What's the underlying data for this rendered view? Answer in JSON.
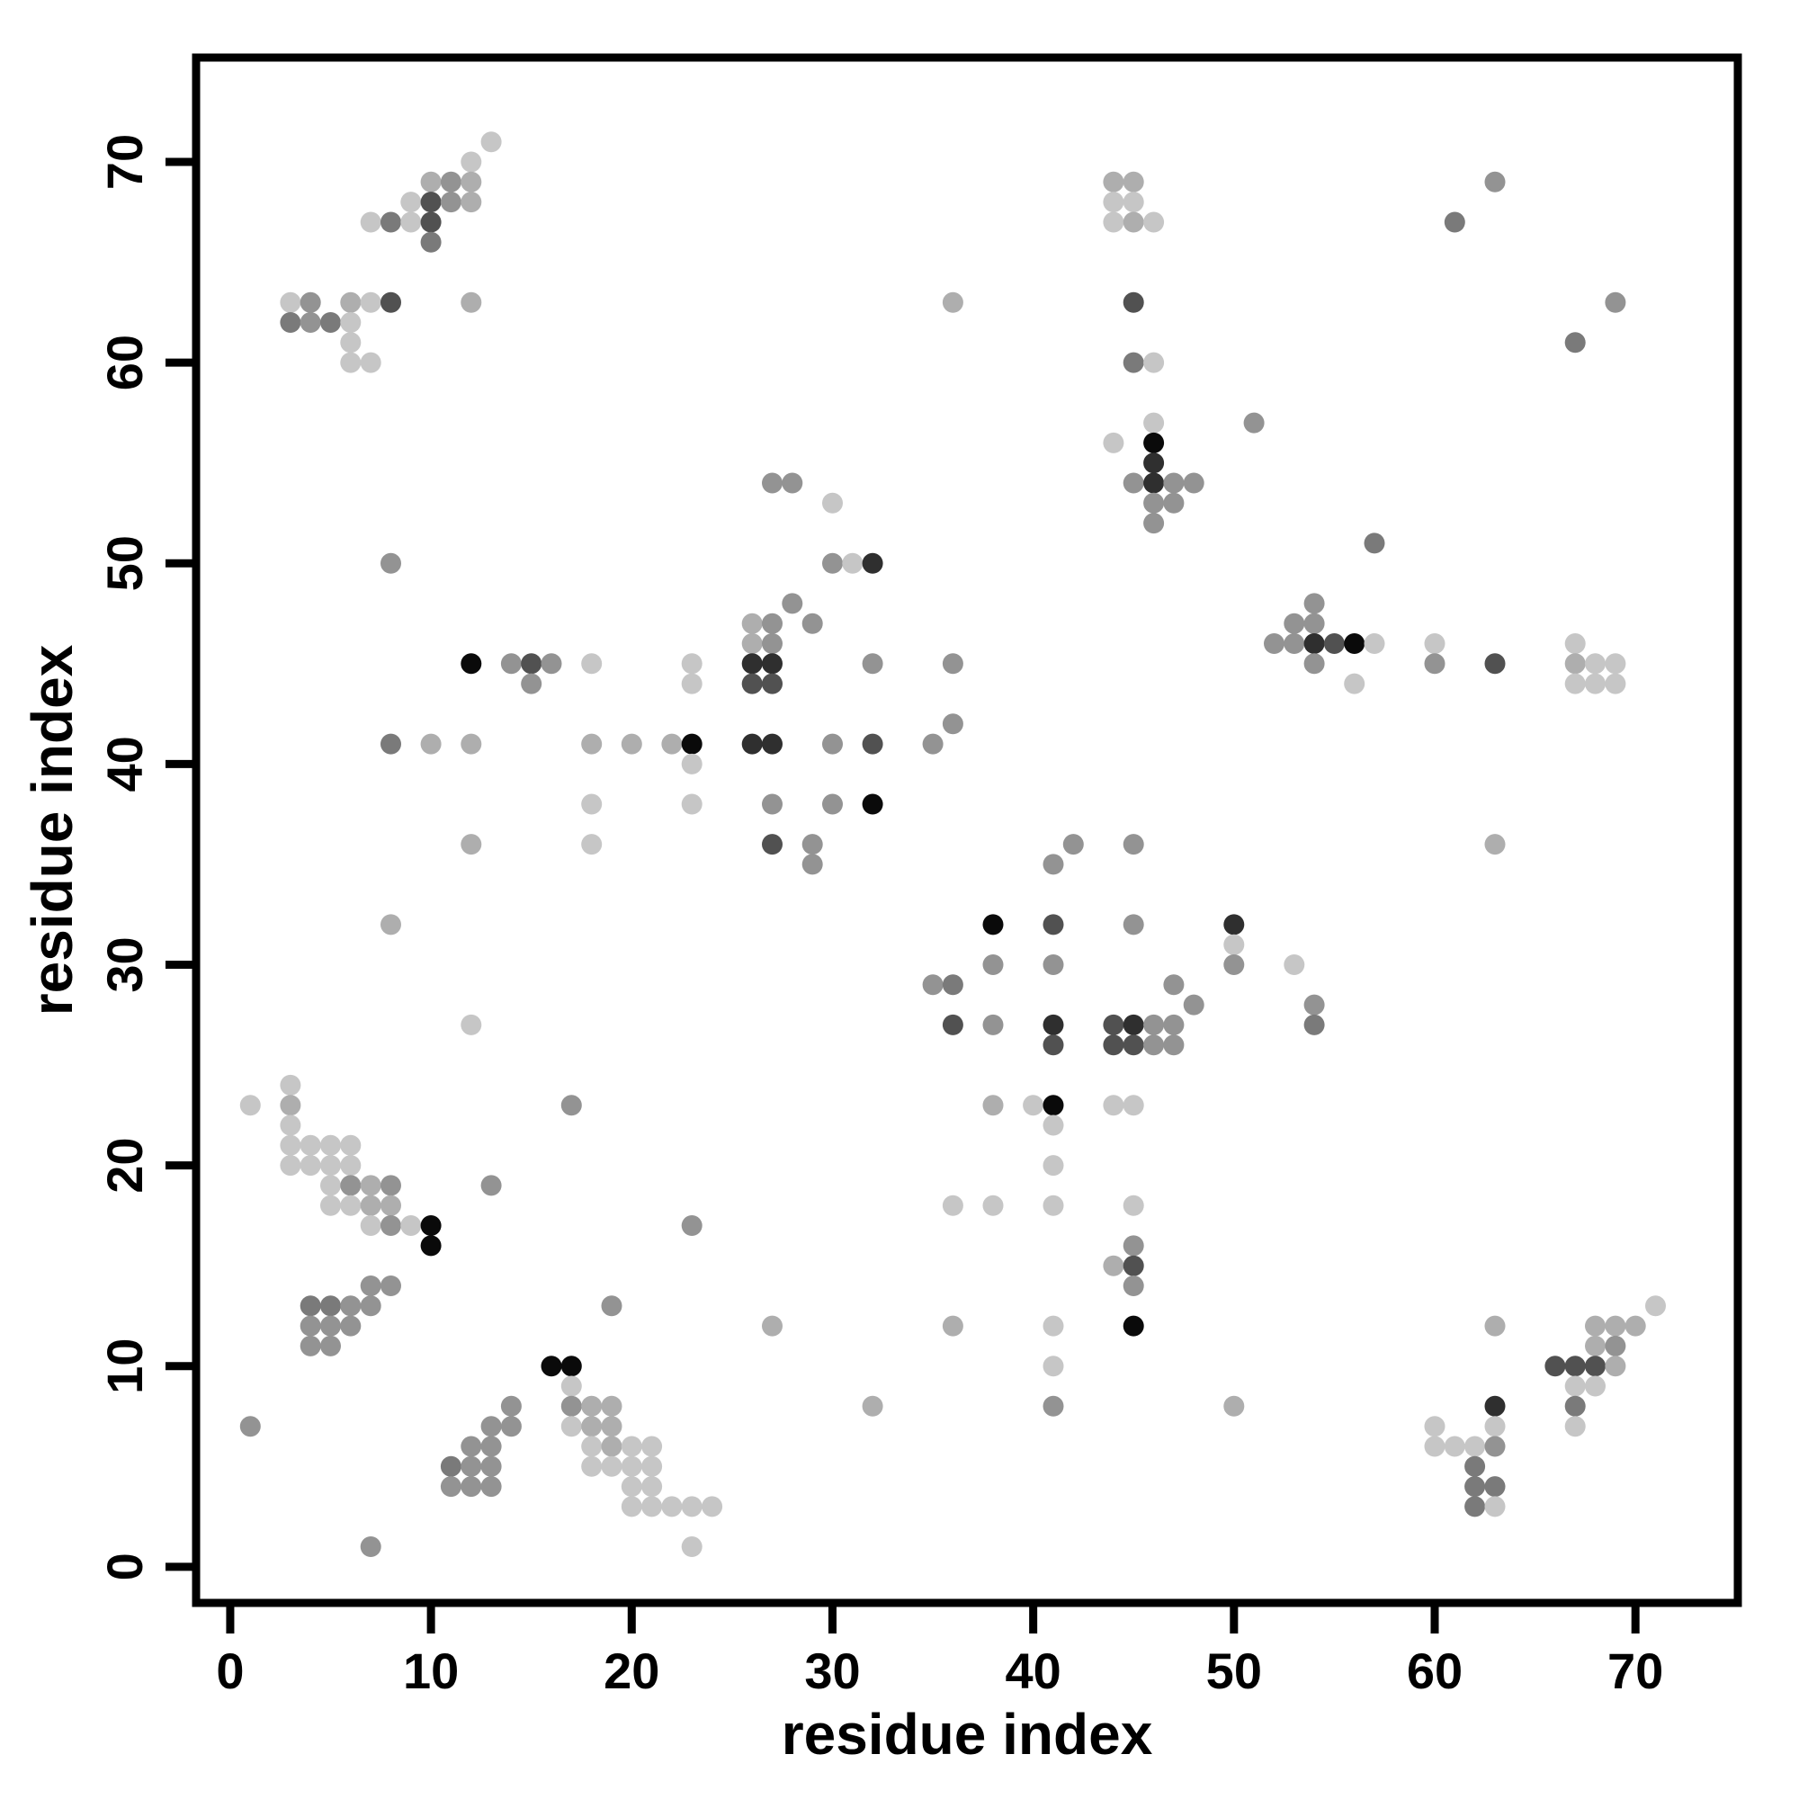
{
  "figure": {
    "background_color": "#ffffff",
    "frame_color": "#000000"
  },
  "chart_data": {
    "type": "scatter",
    "title": "",
    "xlabel": "residue index",
    "ylabel": "residue index",
    "xlim": [
      -1.7,
      75.1
    ],
    "ylim": [
      -1.8,
      75.2
    ],
    "xticks": [
      0,
      10,
      20,
      30,
      40,
      50,
      60,
      70
    ],
    "yticks": [
      0,
      10,
      20,
      30,
      40,
      50,
      60,
      70
    ],
    "grid": false,
    "legend": "none",
    "marker": "circle",
    "marker_radius_px": 11.5,
    "shade_palette": {
      "L": "#c6c6c6",
      "LM": "#aeaeae",
      "M": "#939393",
      "MD": "#7a7a7a",
      "D": "#515151",
      "VD": "#2f2f2f",
      "B": "#0a0a0a"
    },
    "points": [
      [
        13,
        71,
        "L"
      ],
      [
        12,
        70,
        "L"
      ],
      [
        10,
        69,
        "LM"
      ],
      [
        11,
        69,
        "M"
      ],
      [
        12,
        69,
        "LM"
      ],
      [
        9,
        68,
        "L"
      ],
      [
        10,
        68,
        "D"
      ],
      [
        11,
        68,
        "M"
      ],
      [
        12,
        68,
        "LM"
      ],
      [
        7,
        67,
        "L"
      ],
      [
        8,
        67,
        "MD"
      ],
      [
        9,
        67,
        "L"
      ],
      [
        10,
        67,
        "D"
      ],
      [
        10,
        66,
        "MD"
      ],
      [
        3,
        63,
        "L"
      ],
      [
        4,
        63,
        "M"
      ],
      [
        6,
        63,
        "LM"
      ],
      [
        7,
        63,
        "L"
      ],
      [
        8,
        63,
        "D"
      ],
      [
        12,
        63,
        "LM"
      ],
      [
        3,
        62,
        "MD"
      ],
      [
        4,
        62,
        "M"
      ],
      [
        5,
        62,
        "MD"
      ],
      [
        6,
        62,
        "L"
      ],
      [
        6,
        61,
        "L"
      ],
      [
        6,
        60,
        "L"
      ],
      [
        7,
        60,
        "L"
      ],
      [
        3,
        24,
        "L"
      ],
      [
        1,
        23,
        "L"
      ],
      [
        3,
        23,
        "LM"
      ],
      [
        3,
        22,
        "L"
      ],
      [
        3,
        21,
        "L"
      ],
      [
        4,
        21,
        "L"
      ],
      [
        5,
        21,
        "L"
      ],
      [
        6,
        21,
        "L"
      ],
      [
        3,
        20,
        "L"
      ],
      [
        4,
        20,
        "L"
      ],
      [
        5,
        20,
        "L"
      ],
      [
        6,
        20,
        "L"
      ],
      [
        5,
        19,
        "L"
      ],
      [
        6,
        19,
        "M"
      ],
      [
        7,
        19,
        "LM"
      ],
      [
        8,
        19,
        "M"
      ],
      [
        13,
        19,
        "M"
      ],
      [
        5,
        18,
        "L"
      ],
      [
        6,
        18,
        "L"
      ],
      [
        7,
        18,
        "LM"
      ],
      [
        8,
        18,
        "LM"
      ],
      [
        7,
        17,
        "L"
      ],
      [
        8,
        17,
        "M"
      ],
      [
        9,
        17,
        "L"
      ],
      [
        10,
        17,
        "B"
      ],
      [
        10,
        16,
        "B"
      ],
      [
        7,
        14,
        "M"
      ],
      [
        8,
        14,
        "M"
      ],
      [
        4,
        13,
        "MD"
      ],
      [
        5,
        13,
        "MD"
      ],
      [
        6,
        13,
        "M"
      ],
      [
        7,
        13,
        "M"
      ],
      [
        4,
        12,
        "M"
      ],
      [
        5,
        12,
        "M"
      ],
      [
        6,
        12,
        "M"
      ],
      [
        4,
        11,
        "M"
      ],
      [
        5,
        11,
        "M"
      ],
      [
        1,
        7,
        "M"
      ],
      [
        8,
        50,
        "M"
      ],
      [
        8,
        41,
        "MD"
      ],
      [
        8,
        32,
        "LM"
      ],
      [
        12,
        45,
        "B"
      ],
      [
        14,
        45,
        "M"
      ],
      [
        15,
        45,
        "D"
      ],
      [
        16,
        45,
        "M"
      ],
      [
        18,
        45,
        "L"
      ],
      [
        15,
        44,
        "M"
      ],
      [
        10,
        41,
        "LM"
      ],
      [
        12,
        41,
        "LM"
      ],
      [
        18,
        41,
        "LM"
      ],
      [
        20,
        41,
        "LM"
      ],
      [
        22,
        41,
        "LM"
      ],
      [
        23,
        41,
        "B"
      ],
      [
        26,
        41,
        "VD"
      ],
      [
        27,
        41,
        "VD"
      ],
      [
        30,
        41,
        "M"
      ],
      [
        32,
        41,
        "D"
      ],
      [
        12,
        36,
        "LM"
      ],
      [
        18,
        36,
        "L"
      ],
      [
        18,
        38,
        "L"
      ],
      [
        12,
        27,
        "L"
      ],
      [
        17,
        23,
        "M"
      ],
      [
        23,
        17,
        "M"
      ],
      [
        27,
        54,
        "M"
      ],
      [
        28,
        54,
        "M"
      ],
      [
        30,
        53,
        "L"
      ],
      [
        30,
        50,
        "M"
      ],
      [
        31,
        50,
        "L"
      ],
      [
        32,
        50,
        "VD"
      ],
      [
        28,
        48,
        "M"
      ],
      [
        26,
        47,
        "LM"
      ],
      [
        27,
        47,
        "M"
      ],
      [
        29,
        47,
        "M"
      ],
      [
        26,
        46,
        "LM"
      ],
      [
        27,
        46,
        "M"
      ],
      [
        23,
        45,
        "L"
      ],
      [
        26,
        45,
        "VD"
      ],
      [
        27,
        45,
        "VD"
      ],
      [
        32,
        45,
        "M"
      ],
      [
        23,
        44,
        "L"
      ],
      [
        26,
        44,
        "D"
      ],
      [
        27,
        44,
        "D"
      ],
      [
        23,
        40,
        "L"
      ],
      [
        23,
        38,
        "L"
      ],
      [
        27,
        38,
        "M"
      ],
      [
        30,
        38,
        "M"
      ],
      [
        32,
        38,
        "B"
      ],
      [
        27,
        36,
        "D"
      ],
      [
        29,
        36,
        "M"
      ],
      [
        29,
        35,
        "M"
      ],
      [
        35,
        41,
        "M"
      ],
      [
        36,
        42,
        "M"
      ],
      [
        36,
        45,
        "M"
      ],
      [
        19,
        13,
        "M"
      ],
      [
        17,
        10,
        "B"
      ],
      [
        16,
        10,
        "B"
      ],
      [
        17,
        9,
        "L"
      ],
      [
        17,
        8,
        "M"
      ],
      [
        18,
        8,
        "LM"
      ],
      [
        19,
        8,
        "LM"
      ],
      [
        17,
        7,
        "L"
      ],
      [
        18,
        7,
        "LM"
      ],
      [
        19,
        7,
        "LM"
      ],
      [
        18,
        6,
        "L"
      ],
      [
        19,
        6,
        "LM"
      ],
      [
        20,
        6,
        "L"
      ],
      [
        21,
        6,
        "L"
      ],
      [
        18,
        5,
        "L"
      ],
      [
        19,
        5,
        "L"
      ],
      [
        20,
        5,
        "L"
      ],
      [
        21,
        5,
        "L"
      ],
      [
        20,
        4,
        "L"
      ],
      [
        21,
        4,
        "L"
      ],
      [
        20,
        3,
        "L"
      ],
      [
        21,
        3,
        "L"
      ],
      [
        22,
        3,
        "L"
      ],
      [
        23,
        3,
        "L"
      ],
      [
        24,
        3,
        "L"
      ],
      [
        23,
        1,
        "L"
      ],
      [
        7,
        1,
        "M"
      ],
      [
        14,
        8,
        "M"
      ],
      [
        13,
        7,
        "M"
      ],
      [
        14,
        7,
        "M"
      ],
      [
        12,
        6,
        "M"
      ],
      [
        13,
        6,
        "M"
      ],
      [
        11,
        5,
        "MD"
      ],
      [
        12,
        5,
        "M"
      ],
      [
        13,
        5,
        "M"
      ],
      [
        11,
        4,
        "M"
      ],
      [
        12,
        4,
        "M"
      ],
      [
        13,
        4,
        "M"
      ],
      [
        27,
        12,
        "LM"
      ],
      [
        32,
        8,
        "LM"
      ],
      [
        41,
        35,
        "M"
      ],
      [
        42,
        36,
        "M"
      ],
      [
        45,
        36,
        "M"
      ],
      [
        38,
        32,
        "B"
      ],
      [
        41,
        32,
        "D"
      ],
      [
        45,
        32,
        "M"
      ],
      [
        50,
        32,
        "VD"
      ],
      [
        50,
        31,
        "L"
      ],
      [
        38,
        30,
        "M"
      ],
      [
        41,
        30,
        "M"
      ],
      [
        50,
        30,
        "M"
      ],
      [
        53,
        30,
        "L"
      ],
      [
        35,
        29,
        "M"
      ],
      [
        36,
        29,
        "MD"
      ],
      [
        47,
        29,
        "M"
      ],
      [
        48,
        28,
        "M"
      ],
      [
        54,
        28,
        "M"
      ],
      [
        36,
        27,
        "D"
      ],
      [
        38,
        27,
        "M"
      ],
      [
        41,
        27,
        "VD"
      ],
      [
        44,
        27,
        "D"
      ],
      [
        45,
        27,
        "VD"
      ],
      [
        46,
        27,
        "M"
      ],
      [
        47,
        27,
        "M"
      ],
      [
        54,
        27,
        "MD"
      ],
      [
        41,
        26,
        "D"
      ],
      [
        44,
        26,
        "D"
      ],
      [
        45,
        26,
        "D"
      ],
      [
        46,
        26,
        "M"
      ],
      [
        47,
        26,
        "M"
      ],
      [
        38,
        23,
        "LM"
      ],
      [
        40,
        23,
        "L"
      ],
      [
        41,
        23,
        "B"
      ],
      [
        44,
        23,
        "L"
      ],
      [
        45,
        23,
        "L"
      ],
      [
        41,
        22,
        "L"
      ],
      [
        41,
        20,
        "L"
      ],
      [
        36,
        18,
        "L"
      ],
      [
        38,
        18,
        "L"
      ],
      [
        41,
        18,
        "L"
      ],
      [
        45,
        18,
        "L"
      ],
      [
        45,
        16,
        "M"
      ],
      [
        44,
        15,
        "LM"
      ],
      [
        45,
        15,
        "D"
      ],
      [
        45,
        14,
        "M"
      ],
      [
        36,
        12,
        "LM"
      ],
      [
        41,
        12,
        "L"
      ],
      [
        45,
        12,
        "B"
      ],
      [
        41,
        10,
        "L"
      ],
      [
        41,
        8,
        "M"
      ],
      [
        50,
        8,
        "LM"
      ],
      [
        46,
        57,
        "L"
      ],
      [
        44,
        56,
        "L"
      ],
      [
        46,
        56,
        "B"
      ],
      [
        46,
        55,
        "VD"
      ],
      [
        45,
        54,
        "M"
      ],
      [
        46,
        54,
        "VD"
      ],
      [
        47,
        54,
        "M"
      ],
      [
        48,
        54,
        "M"
      ],
      [
        46,
        53,
        "M"
      ],
      [
        47,
        53,
        "M"
      ],
      [
        46,
        52,
        "M"
      ],
      [
        51,
        57,
        "M"
      ],
      [
        57,
        51,
        "MD"
      ],
      [
        44,
        69,
        "LM"
      ],
      [
        45,
        69,
        "LM"
      ],
      [
        44,
        68,
        "L"
      ],
      [
        45,
        68,
        "L"
      ],
      [
        44,
        67,
        "L"
      ],
      [
        45,
        67,
        "LM"
      ],
      [
        46,
        67,
        "L"
      ],
      [
        45,
        63,
        "D"
      ],
      [
        36,
        63,
        "LM"
      ],
      [
        45,
        60,
        "MD"
      ],
      [
        46,
        60,
        "L"
      ],
      [
        63,
        69,
        "M"
      ],
      [
        61,
        67,
        "MD"
      ],
      [
        69,
        63,
        "M"
      ],
      [
        67,
        61,
        "MD"
      ],
      [
        63,
        36,
        "LM"
      ],
      [
        54,
        48,
        "M"
      ],
      [
        53,
        47,
        "M"
      ],
      [
        54,
        47,
        "M"
      ],
      [
        52,
        46,
        "M"
      ],
      [
        53,
        46,
        "M"
      ],
      [
        54,
        46,
        "VD"
      ],
      [
        55,
        46,
        "D"
      ],
      [
        56,
        46,
        "B"
      ],
      [
        57,
        46,
        "L"
      ],
      [
        60,
        46,
        "L"
      ],
      [
        54,
        45,
        "M"
      ],
      [
        60,
        45,
        "M"
      ],
      [
        56,
        44,
        "L"
      ],
      [
        63,
        45,
        "D"
      ],
      [
        67,
        46,
        "L"
      ],
      [
        67,
        45,
        "LM"
      ],
      [
        68,
        45,
        "L"
      ],
      [
        69,
        45,
        "L"
      ],
      [
        67,
        44,
        "L"
      ],
      [
        68,
        44,
        "L"
      ],
      [
        69,
        44,
        "L"
      ],
      [
        71,
        13,
        "L"
      ],
      [
        63,
        12,
        "LM"
      ],
      [
        68,
        12,
        "LM"
      ],
      [
        69,
        12,
        "LM"
      ],
      [
        70,
        12,
        "LM"
      ],
      [
        68,
        11,
        "LM"
      ],
      [
        69,
        11,
        "M"
      ],
      [
        66,
        10,
        "D"
      ],
      [
        67,
        10,
        "D"
      ],
      [
        68,
        10,
        "D"
      ],
      [
        69,
        10,
        "LM"
      ],
      [
        67,
        9,
        "L"
      ],
      [
        68,
        9,
        "L"
      ],
      [
        67,
        8,
        "MD"
      ],
      [
        67,
        7,
        "L"
      ],
      [
        63,
        8,
        "VD"
      ],
      [
        63,
        7,
        "L"
      ],
      [
        60,
        7,
        "L"
      ],
      [
        60,
        6,
        "L"
      ],
      [
        61,
        6,
        "L"
      ],
      [
        62,
        6,
        "L"
      ],
      [
        63,
        6,
        "M"
      ],
      [
        62,
        5,
        "MD"
      ],
      [
        62,
        4,
        "MD"
      ],
      [
        63,
        4,
        "MD"
      ],
      [
        62,
        3,
        "MD"
      ],
      [
        63,
        3,
        "L"
      ]
    ]
  }
}
